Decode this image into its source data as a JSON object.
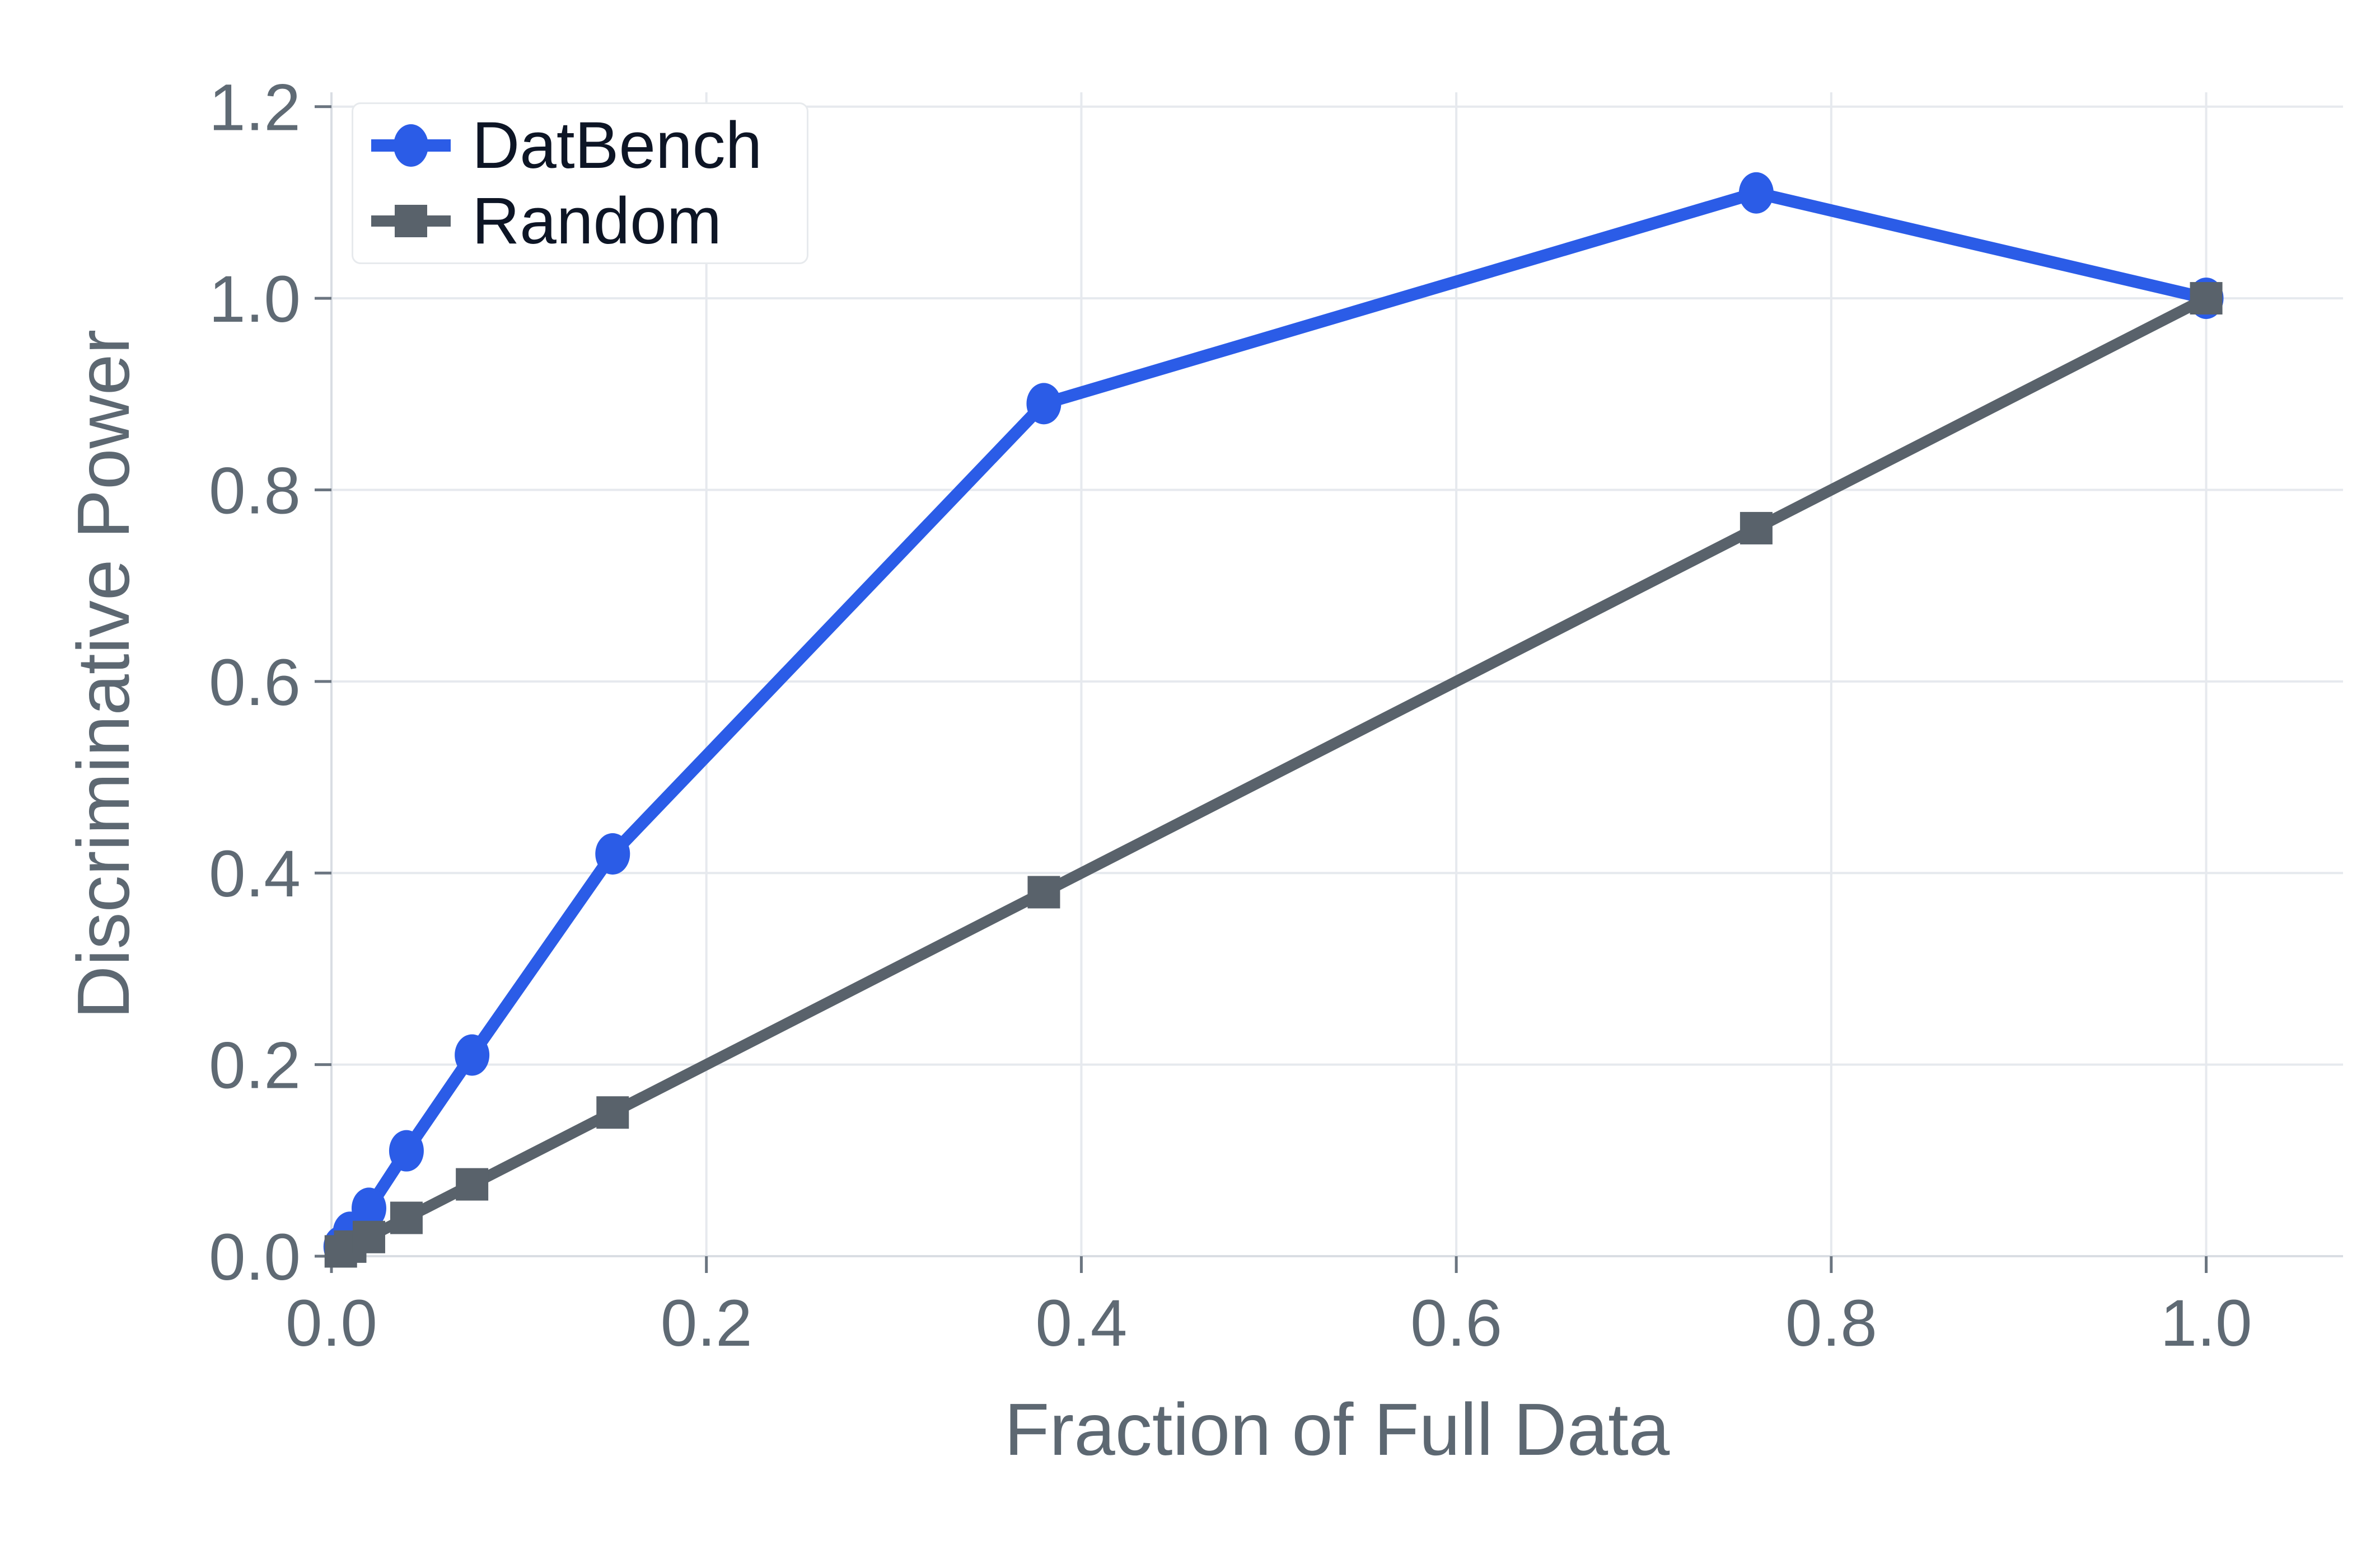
{
  "chart_data": {
    "type": "line",
    "title": "",
    "xlabel": "Fraction of Full Data",
    "ylabel": "Discriminative Power",
    "x_tick_labels": [
      "0.0",
      "0.2",
      "0.4",
      "0.6",
      "0.8",
      "1.0"
    ],
    "x_tick_values": [
      0.0,
      0.2,
      0.4,
      0.6,
      0.8,
      1.0
    ],
    "y_tick_labels": [
      "0.0",
      "0.2",
      "0.4",
      "0.6",
      "0.8",
      "1.0",
      "1.2"
    ],
    "y_tick_values": [
      0.0,
      0.2,
      0.4,
      0.6,
      0.8,
      1.0,
      1.2
    ],
    "xlim": [
      0.0,
      1.073
    ],
    "ylim": [
      0.0,
      1.215
    ],
    "grid": true,
    "legend_position": "upper-left",
    "x": [
      0.005,
      0.01,
      0.02,
      0.04,
      0.075,
      0.15,
      0.38,
      0.76,
      1.0
    ],
    "series": [
      {
        "name": "DatBench",
        "marker": "circle",
        "color": "#2b5ce7",
        "values": [
          0.01,
          0.025,
          0.05,
          0.11,
          0.21,
          0.42,
          0.89,
          1.11,
          1.0
        ]
      },
      {
        "name": "Random",
        "marker": "square",
        "color": "#59626b",
        "values": [
          0.005,
          0.01,
          0.02,
          0.04,
          0.075,
          0.15,
          0.38,
          0.76,
          1.0
        ]
      }
    ]
  },
  "legend": {
    "items": [
      {
        "label": "DatBench"
      },
      {
        "label": "Random"
      }
    ]
  },
  "colors": {
    "background": "#ffffff",
    "gridline": "#e6e9ee",
    "spine": "#d9dde3",
    "tick_mark": "#6b7580",
    "tick_text": "#5f6a74",
    "axis_title_text": "#5d6872",
    "legend_text": "#0d1525",
    "legend_border": "#e7eaed",
    "datbench_blue": "#2b5ce7",
    "random_gray": "#59626b"
  }
}
